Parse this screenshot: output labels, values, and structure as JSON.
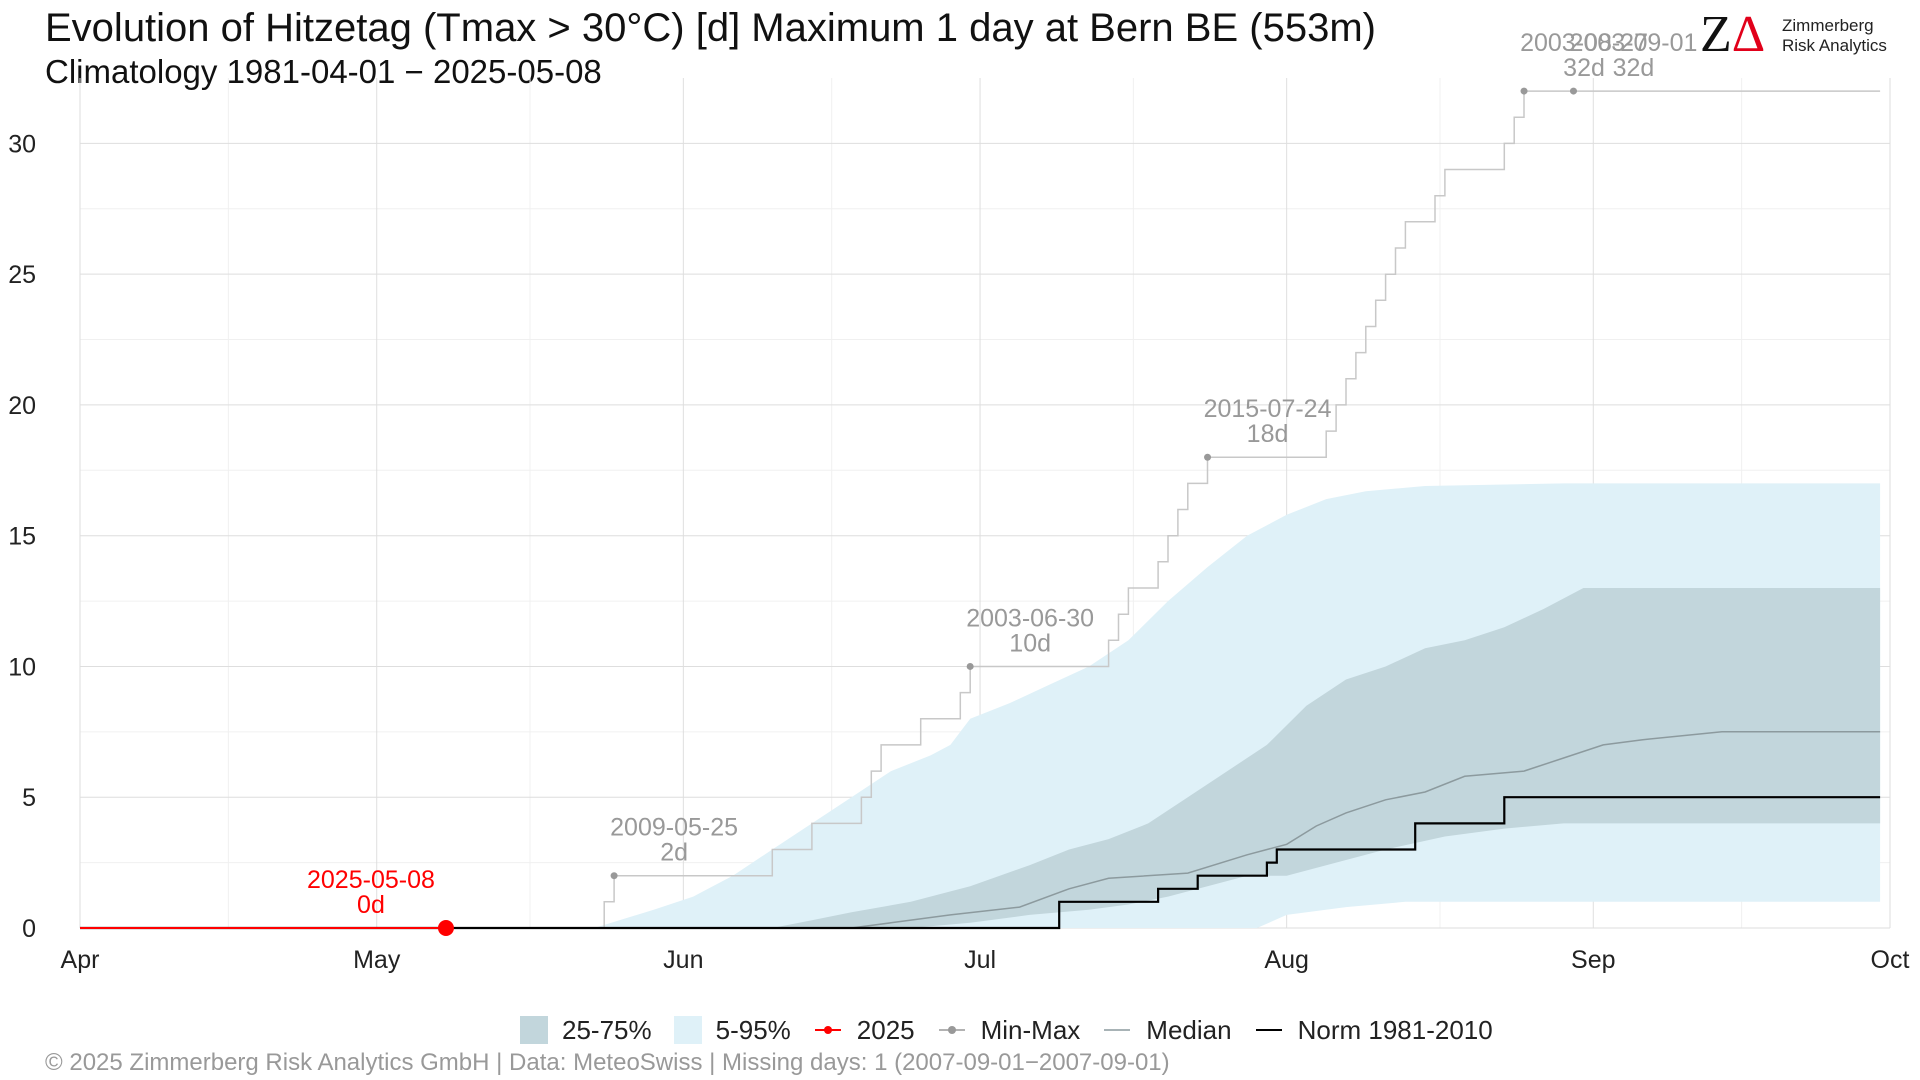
{
  "header": {
    "title": "Evolution of Hitzetag (Tmax > 30°C) [d] Maximum 1 day at Bern  BE (553m)",
    "subtitle": "Climatology 1981-04-01 − 2025-05-08"
  },
  "logo": {
    "mark_z": "Z",
    "mark_delta": "Δ",
    "line1": "Zimmerberg",
    "line2": "Risk Analytics"
  },
  "caption": "©  2025 Zimmerberg Risk Analytics GmbH | Data: MeteoSwiss | Missing days: 1 (2007-09-01−2007-09-01)",
  "colors": {
    "band_25_75": "#c2d6dc",
    "band_5_95": "#dff1f8",
    "current": "#ff0000",
    "minmax": "#999999",
    "minmax_line": "#c8c8c8",
    "median": "#8c9a9e",
    "norm": "#000000"
  },
  "chart_data": {
    "type": "line",
    "x_start": "04-01",
    "xticks": [
      {
        "day": 0,
        "label": "Apr"
      },
      {
        "day": 30,
        "label": "May"
      },
      {
        "day": 61,
        "label": "Jun"
      },
      {
        "day": 91,
        "label": "Jul"
      },
      {
        "day": 122,
        "label": "Aug"
      },
      {
        "day": 153,
        "label": "Sep"
      },
      {
        "day": 183,
        "label": "Oct"
      }
    ],
    "xlim": [
      0,
      183
    ],
    "ylim": [
      0,
      32.5
    ],
    "yticks": [
      0,
      5,
      10,
      15,
      20,
      25,
      30
    ],
    "grid": true,
    "legend_position": "bottom",
    "legend": [
      "25-75%",
      "5-95%",
      "2025",
      "Min-Max",
      "Median",
      "Norm 1981-2010"
    ],
    "series": [
      {
        "name": "2025",
        "kind": "current",
        "points": [
          [
            0,
            0
          ],
          [
            37,
            0
          ]
        ]
      },
      {
        "name": "Norm 1981-2010",
        "kind": "norm",
        "steps": [
          [
            0,
            0
          ],
          [
            99,
            0
          ],
          [
            99,
            1
          ],
          [
            109,
            1
          ],
          [
            109,
            1.5
          ],
          [
            113,
            1.5
          ],
          [
            113,
            2
          ],
          [
            120,
            2
          ],
          [
            120,
            2.5
          ],
          [
            121,
            2.5
          ],
          [
            121,
            3
          ],
          [
            135,
            3
          ],
          [
            135,
            4
          ],
          [
            144,
            4
          ],
          [
            144,
            5
          ],
          [
            182,
            5
          ]
        ]
      },
      {
        "name": "Median",
        "kind": "median",
        "points": [
          [
            0,
            0
          ],
          [
            78,
            0
          ],
          [
            82,
            0.2
          ],
          [
            88,
            0.5
          ],
          [
            95,
            0.8
          ],
          [
            100,
            1.5
          ],
          [
            104,
            1.9
          ],
          [
            112,
            2.1
          ],
          [
            118,
            2.8
          ],
          [
            122,
            3.2
          ],
          [
            125,
            3.9
          ],
          [
            128,
            4.4
          ],
          [
            132,
            4.9
          ],
          [
            136,
            5.2
          ],
          [
            140,
            5.8
          ],
          [
            146,
            6.0
          ],
          [
            150,
            6.5
          ],
          [
            154,
            7.0
          ],
          [
            158,
            7.2
          ],
          [
            166,
            7.5
          ],
          [
            182,
            7.5
          ]
        ]
      },
      {
        "name": "Min-Max",
        "kind": "minmax",
        "steps": [
          [
            0,
            0
          ],
          [
            53,
            0
          ],
          [
            53,
            1
          ],
          [
            54,
            1
          ],
          [
            54,
            2
          ],
          [
            70,
            2
          ],
          [
            70,
            3
          ],
          [
            74,
            3
          ],
          [
            74,
            4
          ],
          [
            79,
            4
          ],
          [
            79,
            5
          ],
          [
            80,
            5
          ],
          [
            80,
            6
          ],
          [
            81,
            6
          ],
          [
            81,
            7
          ],
          [
            85,
            7
          ],
          [
            85,
            8
          ],
          [
            89,
            8
          ],
          [
            89,
            9
          ],
          [
            90,
            9
          ],
          [
            90,
            10
          ],
          [
            104,
            10
          ],
          [
            104,
            11
          ],
          [
            105,
            11
          ],
          [
            105,
            12
          ],
          [
            106,
            12
          ],
          [
            106,
            13
          ],
          [
            109,
            13
          ],
          [
            109,
            14
          ],
          [
            110,
            14
          ],
          [
            110,
            15
          ],
          [
            111,
            15
          ],
          [
            111,
            16
          ],
          [
            112,
            16
          ],
          [
            112,
            17
          ],
          [
            114,
            17
          ],
          [
            114,
            18
          ],
          [
            126,
            18
          ],
          [
            126,
            19
          ],
          [
            127,
            19
          ],
          [
            127,
            20
          ],
          [
            128,
            20
          ],
          [
            128,
            21
          ],
          [
            129,
            21
          ],
          [
            129,
            22
          ],
          [
            130,
            22
          ],
          [
            130,
            23
          ],
          [
            131,
            23
          ],
          [
            131,
            24
          ],
          [
            132,
            24
          ],
          [
            132,
            25
          ],
          [
            133,
            25
          ],
          [
            133,
            26
          ],
          [
            134,
            26
          ],
          [
            134,
            27
          ],
          [
            137,
            27
          ],
          [
            137,
            28
          ],
          [
            138,
            28
          ],
          [
            138,
            29
          ],
          [
            144,
            29
          ],
          [
            144,
            30
          ],
          [
            145,
            30
          ],
          [
            145,
            31
          ],
          [
            146,
            31
          ],
          [
            146,
            32
          ],
          [
            182,
            32
          ]
        ]
      }
    ],
    "bands": [
      {
        "name": "5-95%",
        "kind": "p5_95",
        "upper": [
          [
            0,
            0
          ],
          [
            52,
            0
          ],
          [
            58,
            0.7
          ],
          [
            62,
            1.2
          ],
          [
            66,
            2.0
          ],
          [
            70,
            3.0
          ],
          [
            74,
            4.0
          ],
          [
            78,
            5.0
          ],
          [
            82,
            6.0
          ],
          [
            86,
            6.6
          ],
          [
            88,
            7.0
          ],
          [
            90,
            8.0
          ],
          [
            94,
            8.6
          ],
          [
            98,
            9.3
          ],
          [
            102,
            10.0
          ],
          [
            106,
            11.0
          ],
          [
            110,
            12.5
          ],
          [
            114,
            13.8
          ],
          [
            118,
            15.0
          ],
          [
            122,
            15.8
          ],
          [
            126,
            16.4
          ],
          [
            130,
            16.7
          ],
          [
            136,
            16.9
          ],
          [
            150,
            17.0
          ],
          [
            182,
            17.0
          ]
        ],
        "lower": [
          [
            0,
            0
          ],
          [
            119,
            0
          ],
          [
            122,
            0.5
          ],
          [
            128,
            0.8
          ],
          [
            134,
            1.0
          ],
          [
            182,
            1.0
          ]
        ]
      },
      {
        "name": "25-75%",
        "kind": "p25_75",
        "upper": [
          [
            0,
            0
          ],
          [
            70,
            0
          ],
          [
            74,
            0.3
          ],
          [
            78,
            0.6
          ],
          [
            84,
            1.0
          ],
          [
            90,
            1.6
          ],
          [
            96,
            2.4
          ],
          [
            100,
            3.0
          ],
          [
            104,
            3.4
          ],
          [
            108,
            4.0
          ],
          [
            112,
            5.0
          ],
          [
            116,
            6.0
          ],
          [
            120,
            7.0
          ],
          [
            124,
            8.5
          ],
          [
            128,
            9.5
          ],
          [
            132,
            10.0
          ],
          [
            136,
            10.7
          ],
          [
            140,
            11.0
          ],
          [
            144,
            11.5
          ],
          [
            148,
            12.2
          ],
          [
            152,
            13.0
          ],
          [
            182,
            13.0
          ]
        ],
        "lower": [
          [
            0,
            0
          ],
          [
            84,
            0
          ],
          [
            90,
            0.2
          ],
          [
            96,
            0.5
          ],
          [
            102,
            0.7
          ],
          [
            106,
            0.9
          ],
          [
            110,
            1.2
          ],
          [
            114,
            1.6
          ],
          [
            118,
            2.0
          ],
          [
            122,
            2.0
          ],
          [
            128,
            2.6
          ],
          [
            132,
            3.0
          ],
          [
            138,
            3.5
          ],
          [
            144,
            3.8
          ],
          [
            150,
            4.0
          ],
          [
            182,
            4.0
          ]
        ]
      }
    ],
    "annotations": [
      {
        "date": "2025-05-08",
        "value": "0d",
        "x": 37,
        "y": 0,
        "kind": "current"
      },
      {
        "date": "2009-05-25",
        "value": "2d",
        "x": 54,
        "y": 2,
        "kind": "record"
      },
      {
        "date": "2003-06-30",
        "value": "10d",
        "x": 90,
        "y": 10,
        "kind": "record"
      },
      {
        "date": "2015-07-24",
        "value": "18d",
        "x": 114,
        "y": 18,
        "kind": "record"
      },
      {
        "date": "2003-08-27",
        "value": "32d",
        "x": 146,
        "y": 32,
        "kind": "record"
      },
      {
        "date": "2003-09-01",
        "value": "32d",
        "x": 151,
        "y": 32,
        "kind": "record"
      }
    ]
  }
}
